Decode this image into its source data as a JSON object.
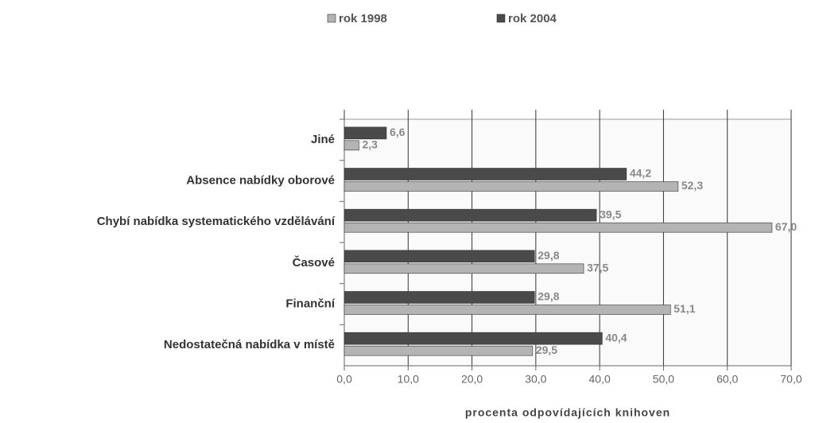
{
  "chart_data": {
    "type": "barh",
    "categories": [
      "Jiné",
      "Absence nabídky oborové",
      "Chybí nabídka systematického vzdělávání",
      "Časové",
      "Finanční",
      "Nedostatečná nabídka v místě"
    ],
    "series": [
      {
        "name": "rok 1998",
        "color": "#b4b4b4",
        "values": [
          2.3,
          52.3,
          67.0,
          37.5,
          51.1,
          29.5
        ],
        "value_labels": [
          "2,3",
          "52,3",
          "67,0",
          "37,5",
          "51,1",
          "29,5"
        ]
      },
      {
        "name": "rok 2004",
        "color": "#4a4a4a",
        "values": [
          6.6,
          44.2,
          39.5,
          29.8,
          29.8,
          40.4
        ],
        "value_labels": [
          "6,6",
          "44,2",
          "39,5",
          "29,8",
          "29,8",
          "40,4"
        ]
      }
    ],
    "xlabel": "procenta odpovídajících knihoven",
    "xlim": [
      0,
      70
    ],
    "xticks": [
      {
        "value": 0,
        "label": "0,0"
      },
      {
        "value": 10,
        "label": "10,0"
      },
      {
        "value": 20,
        "label": "20,0"
      },
      {
        "value": 30,
        "label": "30,0"
      },
      {
        "value": 40,
        "label": "40,0"
      },
      {
        "value": 50,
        "label": "50,0"
      },
      {
        "value": 60,
        "label": "60,0"
      },
      {
        "value": 70,
        "label": "70,0"
      }
    ],
    "grid": true,
    "legend": "top"
  }
}
